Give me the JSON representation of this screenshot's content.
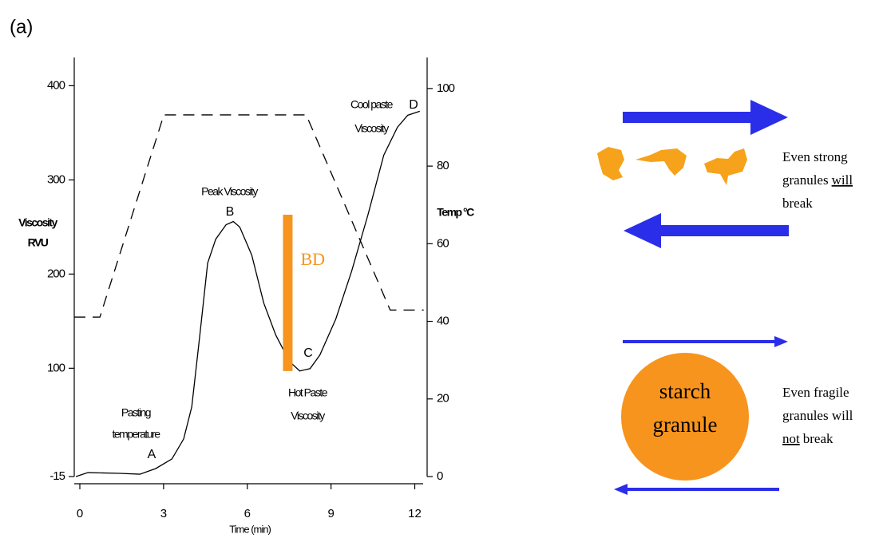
{
  "panel_label": "(a)",
  "chart_data": {
    "type": "line",
    "x_label": "Time (min)",
    "y_label": [
      "Viscosity",
      "RVU"
    ],
    "y2_label": "Temp °C",
    "xlim": [
      -0.2,
      12.3
    ],
    "xticks": [
      0,
      3,
      6,
      9,
      12
    ],
    "ylim": [
      -15,
      430
    ],
    "yticks": [
      -15,
      100,
      200,
      300,
      400
    ],
    "y2lim": [
      0,
      108
    ],
    "y2ticks": [
      0,
      20,
      40,
      60,
      80,
      100
    ],
    "series": [
      {
        "color": "#000000",
        "linestyle": "solid",
        "x": [
          -0.14,
          0.29,
          1.43,
          2.15,
          2.72,
          3.3,
          3.72,
          4.01,
          4.3,
          4.58,
          4.87,
          5.24,
          5.5,
          5.73,
          6.16,
          6.59,
          7.02,
          7.51,
          7.88,
          8.25,
          8.6,
          9.17,
          9.74,
          10.32,
          10.89,
          11.38,
          11.75,
          12.18
        ],
        "values": [
          -15,
          -10.8,
          -11.6,
          -12.5,
          -6.5,
          3.7,
          24.9,
          58.9,
          135.3,
          211.7,
          237.1,
          252.4,
          255.8,
          249.9,
          220.1,
          169.2,
          135.3,
          107.2,
          97.1,
          99.6,
          114,
          152.2,
          203.2,
          262.6,
          326.3,
          356,
          368.7,
          372.9
        ]
      },
      {
        "color": "#000000",
        "linestyle": "dashed",
        "axis": "y2",
        "x": [
          -0.2,
          0.72,
          3.01,
          8.11,
          11.12,
          12.32
        ],
        "values": [
          41.1,
          41.1,
          93.2,
          93.2,
          42.9,
          42.9
        ]
      }
    ],
    "breakdown": {
      "label": "BD",
      "x": 7.45,
      "values": [
        263,
        97
      ],
      "color": "#f7941d"
    },
    "annotations": [
      {
        "text": [
          "Pasting",
          "temperature"
        ],
        "point": "A"
      },
      {
        "text": [
          "Peak Viscosity"
        ],
        "point": "B"
      },
      {
        "text": [
          "Hot Paste",
          "Viscosity"
        ],
        "point": "C"
      },
      {
        "text": [
          "Cool paste",
          "Viscosity"
        ],
        "point": "D"
      }
    ]
  },
  "diagram": {
    "strong": {
      "lines": [
        [
          "Even strong"
        ],
        [
          "granules",
          "will"
        ],
        [
          "break"
        ]
      ]
    },
    "fragile": {
      "lines": [
        [
          "Even fragile"
        ],
        [
          "granules will"
        ],
        [
          "not",
          "break"
        ]
      ]
    },
    "granule": [
      "starch",
      "granule"
    ]
  }
}
